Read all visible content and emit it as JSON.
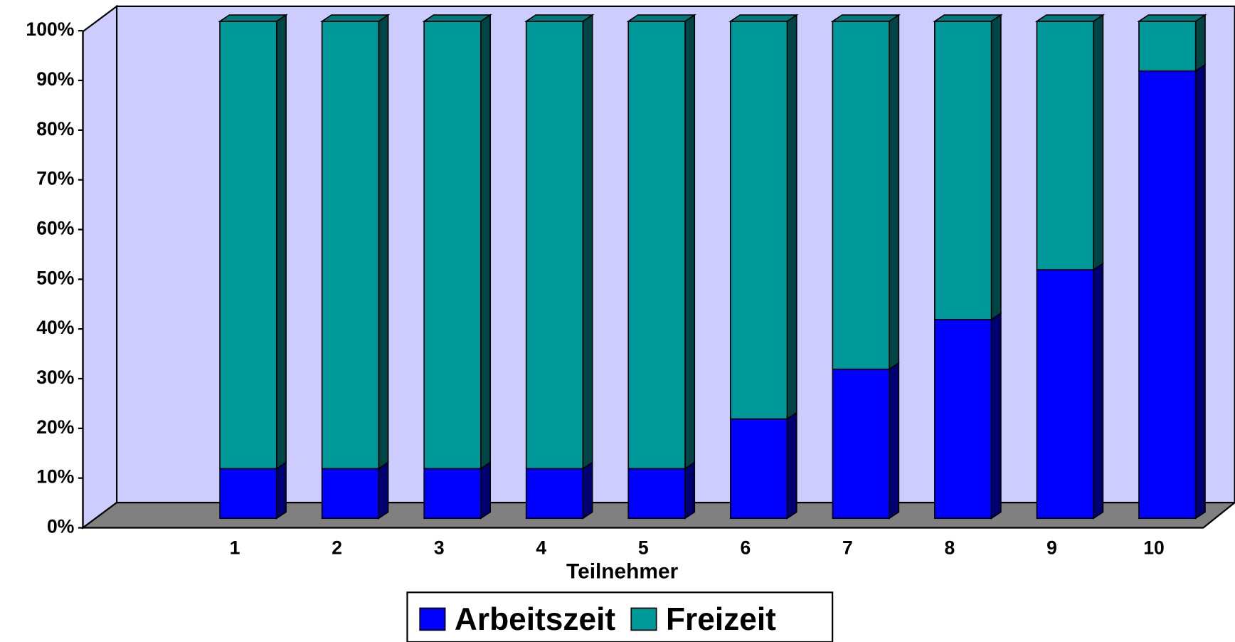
{
  "chart_data": {
    "type": "bar",
    "stacked": true,
    "x_label": "Teilnehmer",
    "categories": [
      "1",
      "2",
      "3",
      "4",
      "5",
      "6",
      "7",
      "8",
      "9",
      "10"
    ],
    "series": [
      {
        "name": "Arbeitszeit",
        "color": "#0000ff",
        "values": [
          10,
          10,
          10,
          10,
          10,
          20,
          30,
          40,
          50,
          90
        ]
      },
      {
        "name": "Freizeit",
        "color": "#009999",
        "values": [
          90,
          90,
          90,
          90,
          90,
          80,
          70,
          60,
          50,
          10
        ]
      }
    ],
    "ylim": [
      0,
      100
    ],
    "yticks": [
      {
        "value": 0,
        "label": "0%"
      },
      {
        "value": 10,
        "label": "10%"
      },
      {
        "value": 20,
        "label": "20%"
      },
      {
        "value": 30,
        "label": "30%"
      },
      {
        "value": 40,
        "label": "40%"
      },
      {
        "value": 50,
        "label": "50%"
      },
      {
        "value": 60,
        "label": "60%"
      },
      {
        "value": 70,
        "label": "70%"
      },
      {
        "value": 80,
        "label": "80%"
      },
      {
        "value": 90,
        "label": "90%"
      },
      {
        "value": 100,
        "label": "100%"
      }
    ],
    "legend": "bottom"
  }
}
